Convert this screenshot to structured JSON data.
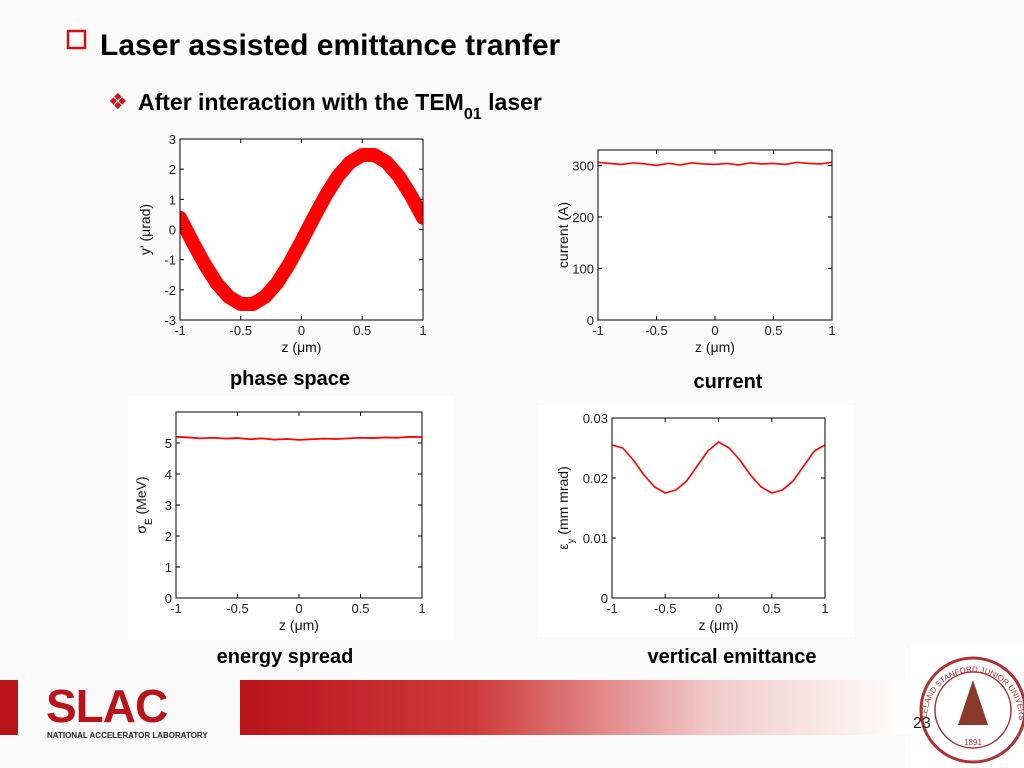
{
  "slide": {
    "title": "Laser assisted emittance tranfer",
    "subtitle": [
      {
        "text": "After interaction with the TEM"
      },
      {
        "text": "01",
        "sub": true
      },
      {
        "text": " laser"
      }
    ],
    "logo": "SLAC",
    "logo_caption": "NATIONAL ACCELERATOR LABORATORY",
    "seal_text": "LELAND STANFORD JUNIOR UNIVERSITY",
    "seal_year": "1891",
    "page": "23"
  },
  "chart_data": [
    {
      "type": "line",
      "caption": "phase space",
      "xlabel": "z (μm)",
      "ylabel": [
        {
          "text": "y' (μrad)"
        }
      ],
      "x": [
        -1,
        -0.9,
        -0.8,
        -0.7,
        -0.6,
        -0.5,
        -0.4,
        -0.3,
        -0.2,
        -0.1,
        0,
        0.1,
        0.2,
        0.3,
        0.4,
        0.5,
        0.6,
        0.7,
        0.8,
        0.9,
        1
      ],
      "series": [
        {
          "color": "#ff0000",
          "values": [
            0.39,
            -0.39,
            -1.13,
            -1.77,
            -2.23,
            -2.47,
            -2.47,
            -2.23,
            -1.77,
            -1.13,
            -0.39,
            0.39,
            1.13,
            1.77,
            2.23,
            2.47,
            2.47,
            2.23,
            1.77,
            1.13,
            0.39
          ]
        }
      ],
      "xlim": [
        -1,
        1
      ],
      "xticks": [
        -1,
        -0.5,
        0,
        0.5,
        1
      ],
      "ylim": [
        -3,
        3
      ],
      "yticks": [
        -3,
        -2,
        -1,
        0,
        1,
        2,
        3
      ]
    },
    {
      "type": "line",
      "caption": "current",
      "xlabel": "z (μm)",
      "ylabel": [
        {
          "text": "current (A)"
        }
      ],
      "x": [
        -1,
        -0.9,
        -0.8,
        -0.7,
        -0.6,
        -0.5,
        -0.4,
        -0.3,
        -0.2,
        -0.1,
        0,
        0.1,
        0.2,
        0.3,
        0.4,
        0.5,
        0.6,
        0.7,
        0.8,
        0.9,
        1
      ],
      "series": [
        {
          "color": "#ff0000",
          "values": [
            306,
            304,
            302,
            305,
            303,
            300,
            304,
            301,
            305,
            303,
            302,
            304,
            301,
            305,
            303,
            304,
            302,
            306,
            304,
            303,
            306
          ]
        }
      ],
      "xlim": [
        -1,
        1
      ],
      "xticks": [
        -1,
        -0.5,
        0,
        0.5,
        1
      ],
      "ylim": [
        0,
        330
      ],
      "yticks": [
        0,
        100,
        200,
        300
      ]
    },
    {
      "type": "line",
      "caption": "energy spread",
      "xlabel": "z (μm)",
      "ylabel": [
        {
          "text": "σ"
        },
        {
          "text": "E",
          "sub": true
        },
        {
          "text": " (MeV)"
        }
      ],
      "x": [
        -1,
        -0.9,
        -0.8,
        -0.7,
        -0.6,
        -0.5,
        -0.4,
        -0.3,
        -0.2,
        -0.1,
        0,
        0.1,
        0.2,
        0.3,
        0.4,
        0.5,
        0.6,
        0.7,
        0.8,
        0.9,
        1
      ],
      "series": [
        {
          "color": "#ff0000",
          "values": [
            5.2,
            5.18,
            5.15,
            5.17,
            5.14,
            5.16,
            5.12,
            5.15,
            5.11,
            5.13,
            5.1,
            5.12,
            5.14,
            5.13,
            5.15,
            5.17,
            5.16,
            5.18,
            5.17,
            5.2,
            5.19
          ]
        }
      ],
      "xlim": [
        -1,
        1
      ],
      "xticks": [
        -1,
        -0.5,
        0,
        0.5,
        1
      ],
      "ylim": [
        0,
        6
      ],
      "yticks": [
        0,
        1,
        2,
        3,
        4,
        5
      ]
    },
    {
      "type": "line",
      "caption": "vertical emittance",
      "xlabel": "z (μm)",
      "ylabel": [
        {
          "text": "ε"
        },
        {
          "text": "y",
          "sub": true
        },
        {
          "text": " (mm mrad)"
        }
      ],
      "x": [
        -1,
        -0.9,
        -0.8,
        -0.7,
        -0.6,
        -0.5,
        -0.4,
        -0.3,
        -0.2,
        -0.1,
        0,
        0.1,
        0.2,
        0.3,
        0.4,
        0.5,
        0.6,
        0.7,
        0.8,
        0.9,
        1
      ],
      "series": [
        {
          "color": "#ff0000",
          "values": [
            0.0255,
            0.025,
            0.023,
            0.0205,
            0.0185,
            0.0175,
            0.018,
            0.0195,
            0.022,
            0.0245,
            0.026,
            0.025,
            0.023,
            0.0205,
            0.0185,
            0.0175,
            0.018,
            0.0195,
            0.022,
            0.0245,
            0.0255
          ]
        }
      ],
      "xlim": [
        -1,
        1
      ],
      "xticks": [
        -1,
        -0.5,
        0,
        0.5,
        1
      ],
      "ylim": [
        0,
        0.03
      ],
      "yticks": [
        0,
        0.01,
        0.02,
        0.03
      ]
    }
  ]
}
